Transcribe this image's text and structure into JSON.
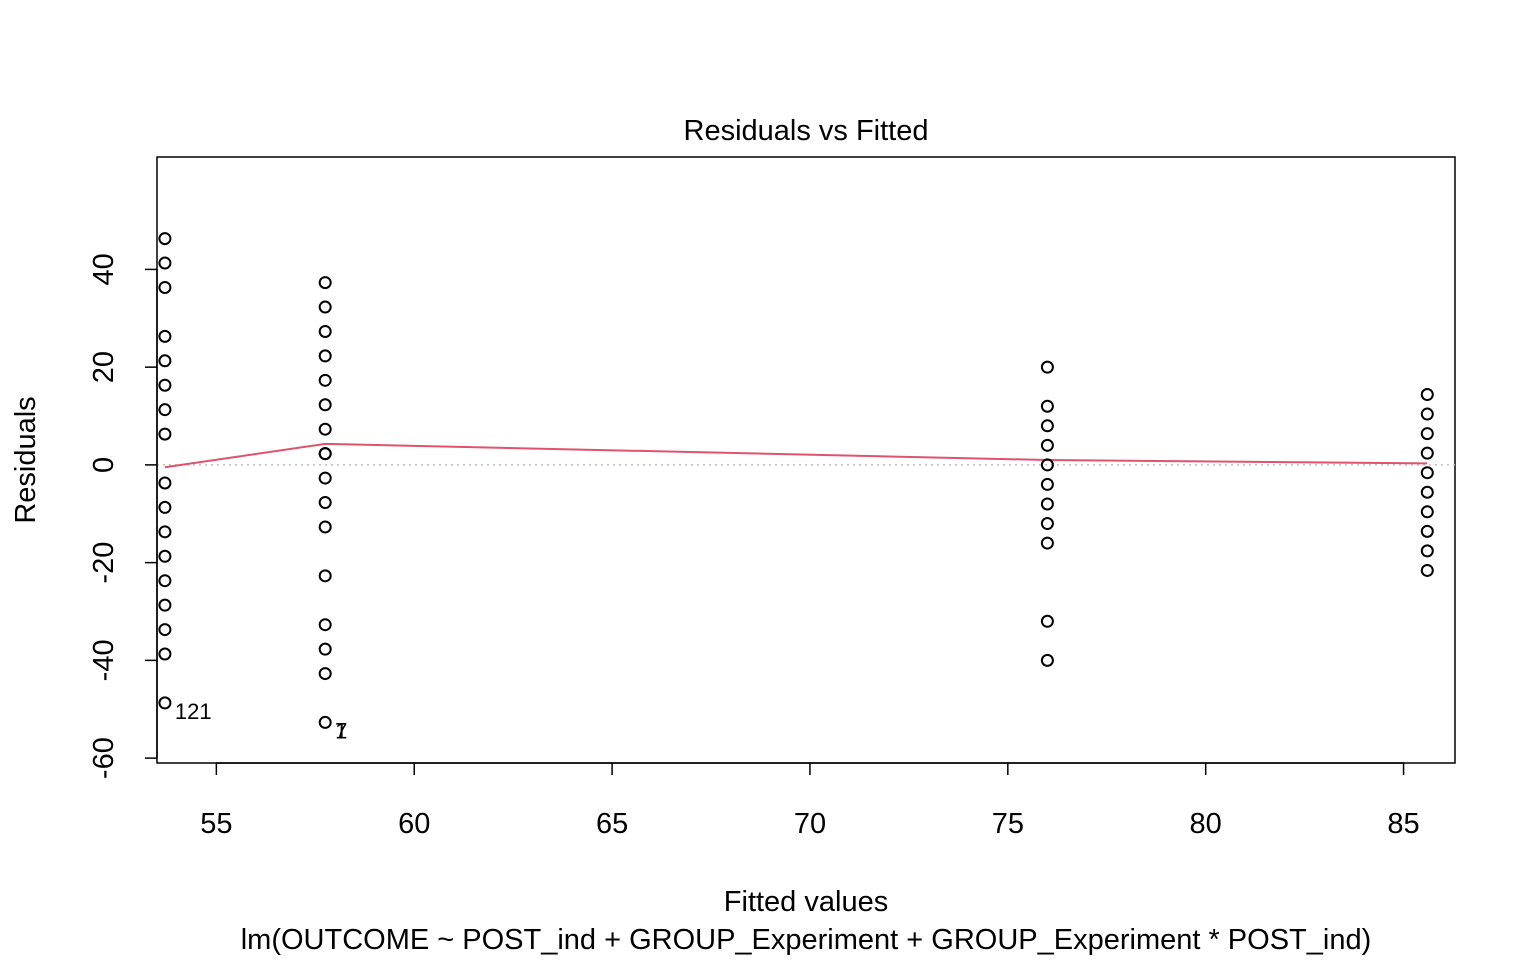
{
  "chart_data": {
    "type": "scatter",
    "title": "Residuals vs Fitted",
    "xlabel": "Fitted values",
    "ylabel": "Residuals",
    "subtitle": "lm(OUTCOME ~ POST_ind + GROUP_Experiment + GROUP_Experiment * POST_ind)",
    "xlim": [
      53.5,
      86.3
    ],
    "ylim": [
      -61,
      63
    ],
    "x_ticks": [
      55,
      60,
      65,
      70,
      75,
      80,
      85
    ],
    "y_ticks": [
      -60,
      -40,
      -20,
      0,
      20,
      40
    ],
    "x_tick_labels": [
      "55",
      "60",
      "65",
      "70",
      "75",
      "80",
      "85"
    ],
    "y_tick_labels": [
      "-60",
      "-40",
      "-20",
      "0",
      "20",
      "40"
    ],
    "zero_reference_line": true,
    "series": [
      {
        "points": [
          {
            "x": 53.7,
            "y": 46.3
          },
          {
            "x": 53.7,
            "y": 41.3
          },
          {
            "x": 53.7,
            "y": 36.3
          },
          {
            "x": 53.7,
            "y": 26.3
          },
          {
            "x": 53.7,
            "y": 21.3
          },
          {
            "x": 53.7,
            "y": 16.3
          },
          {
            "x": 53.7,
            "y": 11.3
          },
          {
            "x": 53.7,
            "y": 6.3
          },
          {
            "x": 53.7,
            "y": -3.7
          },
          {
            "x": 53.7,
            "y": -8.7
          },
          {
            "x": 53.7,
            "y": -13.7
          },
          {
            "x": 53.7,
            "y": -18.7
          },
          {
            "x": 53.7,
            "y": -23.7
          },
          {
            "x": 53.7,
            "y": -28.7
          },
          {
            "x": 53.7,
            "y": -33.7
          },
          {
            "x": 53.7,
            "y": -38.7
          },
          {
            "x": 53.7,
            "y": -48.7
          },
          {
            "x": 57.75,
            "y": 37.3
          },
          {
            "x": 57.75,
            "y": 32.3
          },
          {
            "x": 57.75,
            "y": 27.3
          },
          {
            "x": 57.75,
            "y": 22.3
          },
          {
            "x": 57.75,
            "y": 17.3
          },
          {
            "x": 57.75,
            "y": 12.3
          },
          {
            "x": 57.75,
            "y": 7.3
          },
          {
            "x": 57.75,
            "y": 2.3
          },
          {
            "x": 57.75,
            "y": 2.3
          },
          {
            "x": 57.75,
            "y": -2.7
          },
          {
            "x": 57.75,
            "y": -7.7
          },
          {
            "x": 57.75,
            "y": -12.7
          },
          {
            "x": 57.75,
            "y": -22.7
          },
          {
            "x": 57.75,
            "y": -32.7
          },
          {
            "x": 57.75,
            "y": -37.7
          },
          {
            "x": 57.75,
            "y": -42.7
          },
          {
            "x": 57.75,
            "y": -52.7
          },
          {
            "x": 76.0,
            "y": 20.0
          },
          {
            "x": 76.0,
            "y": 12.0
          },
          {
            "x": 76.0,
            "y": 8.0
          },
          {
            "x": 76.0,
            "y": 4.0
          },
          {
            "x": 76.0,
            "y": 0.0
          },
          {
            "x": 76.0,
            "y": -4.0
          },
          {
            "x": 76.0,
            "y": -8.0
          },
          {
            "x": 76.0,
            "y": -12.0
          },
          {
            "x": 76.0,
            "y": -16.0
          },
          {
            "x": 76.0,
            "y": -32.0
          },
          {
            "x": 76.0,
            "y": -40.0
          },
          {
            "x": 85.6,
            "y": 14.4
          },
          {
            "x": 85.6,
            "y": 10.4
          },
          {
            "x": 85.6,
            "y": 6.4
          },
          {
            "x": 85.6,
            "y": 2.4
          },
          {
            "x": 85.6,
            "y": -1.6
          },
          {
            "x": 85.6,
            "y": -5.6
          },
          {
            "x": 85.6,
            "y": -9.6
          },
          {
            "x": 85.6,
            "y": -13.6
          },
          {
            "x": 85.6,
            "y": -17.6
          },
          {
            "x": 85.6,
            "y": -21.6
          }
        ]
      }
    ],
    "smoother_line": {
      "color": "#DF536B",
      "points": [
        {
          "x": 53.7,
          "y": -0.5
        },
        {
          "x": 57.75,
          "y": 4.3
        },
        {
          "x": 76.0,
          "y": 1.0
        },
        {
          "x": 85.6,
          "y": 0.3
        }
      ]
    },
    "point_labels": [
      {
        "text": "121",
        "x": 53.7,
        "y": -48.7
      },
      {
        "text": "7",
        "x": 57.75,
        "y": -52.7
      },
      {
        "text": "1",
        "x": 57.75,
        "y": -52.7
      }
    ],
    "grid": false,
    "point_color": "#000000",
    "reference_line_color": "#BEBEBE"
  }
}
